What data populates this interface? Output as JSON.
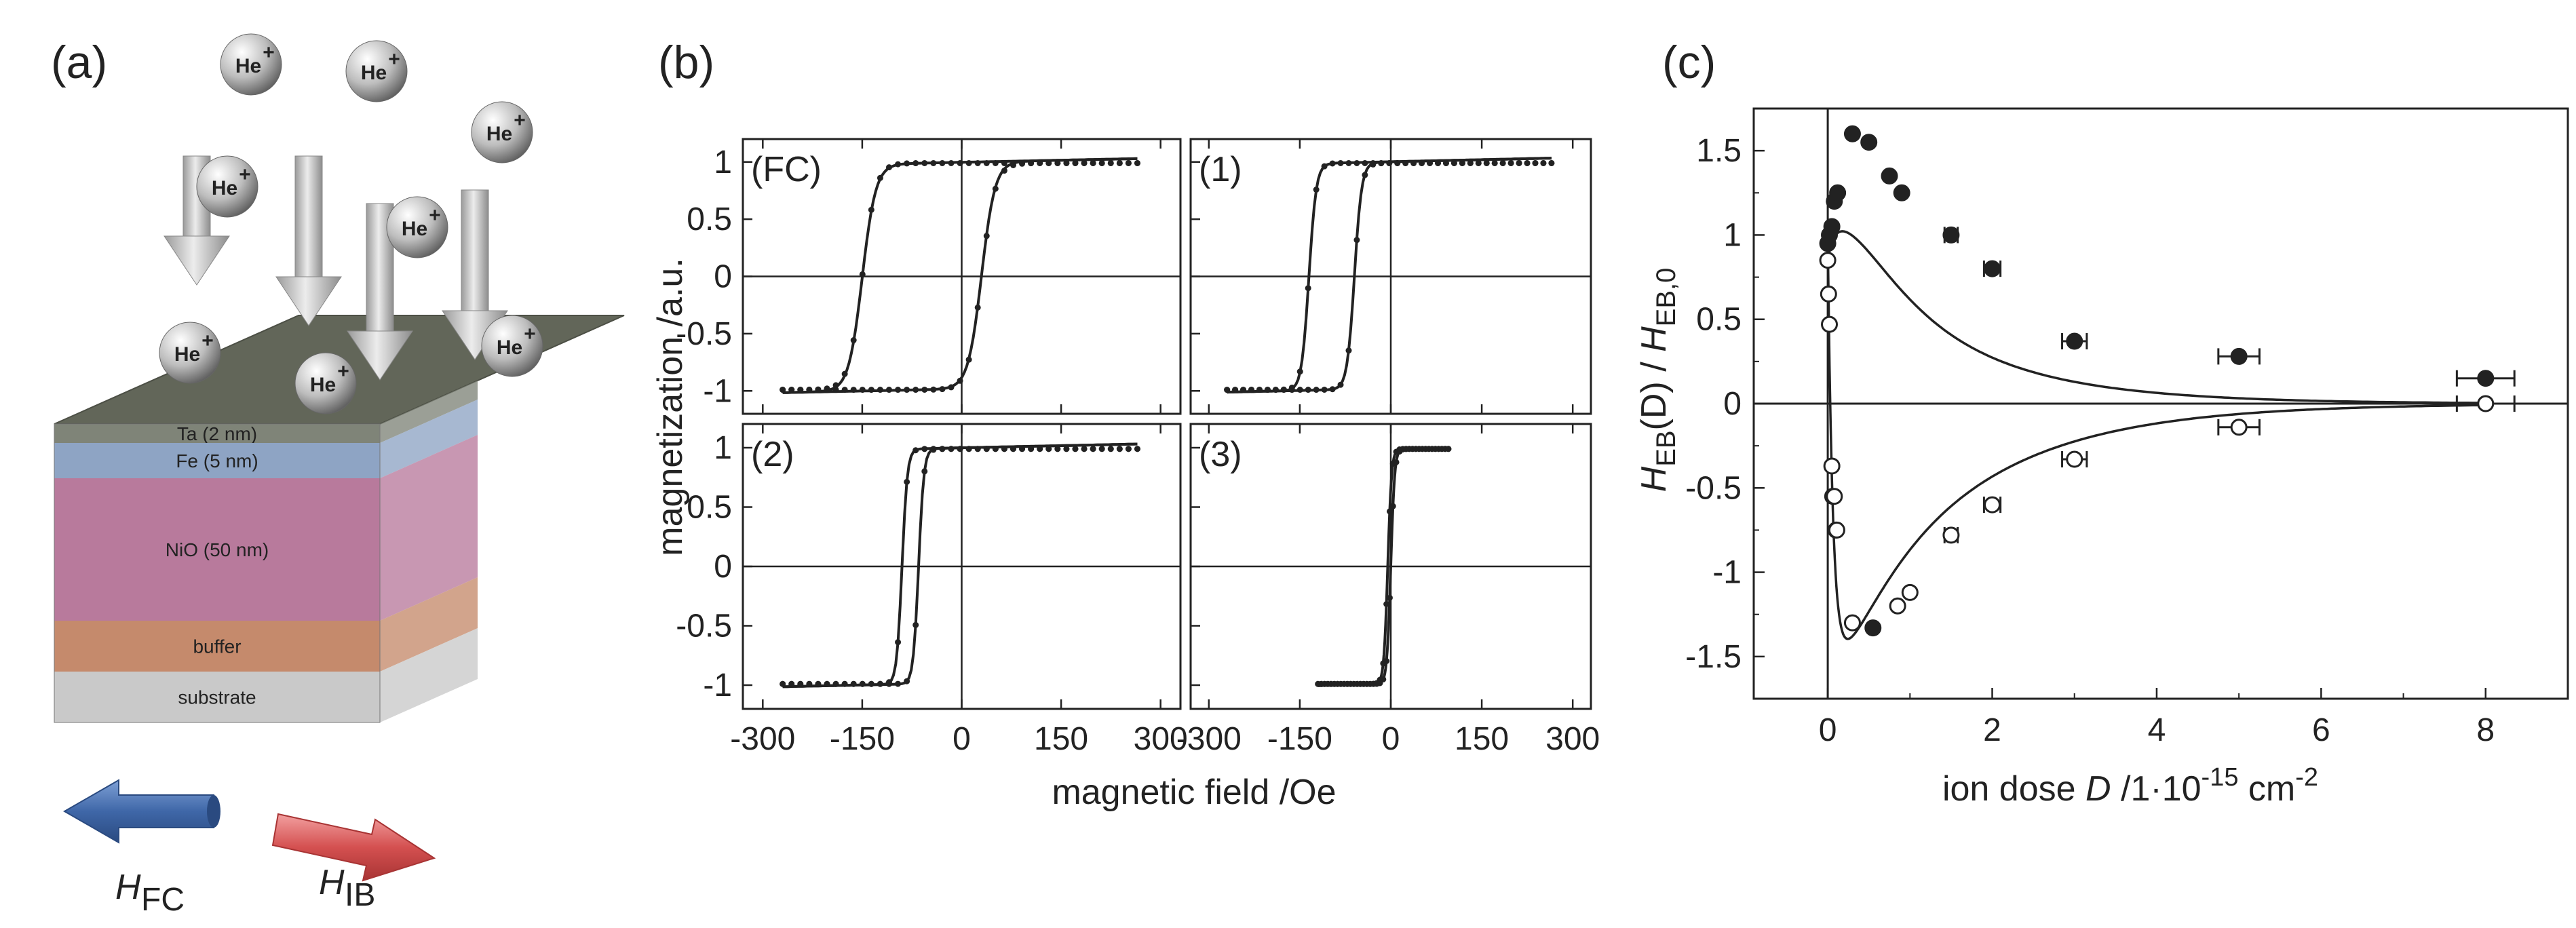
{
  "panel_a": {
    "label": "(a)",
    "ion_label": "He",
    "ion_charge": "+",
    "layers": [
      {
        "label": "Ta (2 nm)",
        "color": "#7f8478",
        "thick": 28
      },
      {
        "label": "Fe (5 nm)",
        "color": "#8ea4c4",
        "thick": 52
      },
      {
        "label": "NiO (50 nm)",
        "color": "#b87a9c",
        "thick": 210
      },
      {
        "label": "buffer",
        "color": "#c58a6c",
        "thick": 75
      },
      {
        "label": "substrate",
        "color": "#c9c9c9",
        "thick": 75
      }
    ],
    "top_color": "#626659",
    "arrow_fc": {
      "symbol": "H",
      "subscript": "FC",
      "color": "#4a74b3"
    },
    "arrow_ib": {
      "symbol": "H",
      "subscript": "IB",
      "color": "#d45a5a"
    }
  },
  "panel_b": {
    "label": "(b)",
    "ylabel": "magnetization /a.u.",
    "xlabel": "magnetic field /Oe",
    "xticks": [
      "-300",
      "-150",
      "0",
      "150",
      "300"
    ],
    "yticks": [
      "1",
      "0.5",
      "0",
      "-0.5",
      "-1"
    ]
  },
  "panel_c": {
    "label": "(c)",
    "ylabel_main": "H",
    "ylabel_sub1": "EB",
    "ylabel_mid": "(D) / ",
    "ylabel_main2": "H",
    "ylabel_sub2": "EB,0",
    "xlabel_prefix": "ion dose ",
    "xlabel_var": "D",
    "xlabel_unit": " /1·10",
    "xlabel_exp1": "-15",
    "xlabel_unit2": " cm",
    "xlabel_exp2": "-2",
    "xticks": [
      "0",
      "2",
      "4",
      "6",
      "8"
    ],
    "yticks": [
      "1.5",
      "1",
      "0.5",
      "0",
      "-0.5",
      "-1",
      "-1.5"
    ]
  },
  "chart_data": [
    {
      "type": "line",
      "panel": "b",
      "tag": "(FC)",
      "xlim": [
        -330,
        330
      ],
      "ylim": [
        -1.2,
        1.2
      ],
      "hc_left": -150,
      "hc_right": 30,
      "saturation": 1.0,
      "x_range": [
        -270,
        265
      ]
    },
    {
      "type": "line",
      "panel": "b",
      "tag": "(1)",
      "xlim": [
        -330,
        330
      ],
      "ylim": [
        -1.2,
        1.2
      ],
      "hc_left": -135,
      "hc_right": -60,
      "saturation": 1.0,
      "x_range": [
        -270,
        265
      ]
    },
    {
      "type": "line",
      "panel": "b",
      "tag": "(2)",
      "xlim": [
        -330,
        330
      ],
      "ylim": [
        -1.2,
        1.2
      ],
      "hc_left": -90,
      "hc_right": -65,
      "saturation": 1.0,
      "x_range": [
        -270,
        265
      ]
    },
    {
      "type": "line",
      "panel": "b",
      "tag": "(3)",
      "xlim": [
        -330,
        330
      ],
      "ylim": [
        -1.2,
        1.2
      ],
      "hc_left": -5,
      "hc_right": 0,
      "saturation": 1.0,
      "x_range": [
        -120,
        95
      ]
    },
    {
      "type": "scatter",
      "panel": "c",
      "xlim": [
        -0.9,
        9.0
      ],
      "ylim": [
        -1.75,
        1.75
      ],
      "filled_points": [
        {
          "x": 0.0,
          "y": 0.95
        },
        {
          "x": 0.02,
          "y": 1.0
        },
        {
          "x": 0.05,
          "y": 1.05
        },
        {
          "x": 0.08,
          "y": 1.2
        },
        {
          "x": 0.12,
          "y": 1.25
        },
        {
          "x": 0.3,
          "y": 1.6
        },
        {
          "x": 0.5,
          "y": 1.55
        },
        {
          "x": 0.75,
          "y": 1.35
        },
        {
          "x": 0.9,
          "y": 1.25
        },
        {
          "x": 1.5,
          "y": 1.0,
          "xerr": 0.08
        },
        {
          "x": 2.0,
          "y": 0.8,
          "xerr": 0.1
        },
        {
          "x": 3.0,
          "y": 0.37,
          "xerr": 0.15
        },
        {
          "x": 5.0,
          "y": 0.28,
          "xerr": 0.25
        },
        {
          "x": 8.0,
          "y": 0.15,
          "xerr": 0.35
        },
        {
          "x": 0.06,
          "y": -0.55
        },
        {
          "x": 0.1,
          "y": -0.75
        },
        {
          "x": 0.55,
          "y": -1.33
        }
      ],
      "open_points": [
        {
          "x": 0.0,
          "y": 0.85
        },
        {
          "x": 0.01,
          "y": 0.65
        },
        {
          "x": 0.02,
          "y": 0.47
        },
        {
          "x": 0.05,
          "y": -0.37
        },
        {
          "x": 0.08,
          "y": -0.55
        },
        {
          "x": 0.11,
          "y": -0.75
        },
        {
          "x": 0.3,
          "y": -1.3
        },
        {
          "x": 0.85,
          "y": -1.2
        },
        {
          "x": 1.0,
          "y": -1.12
        },
        {
          "x": 1.5,
          "y": -0.78,
          "xerr": 0.08
        },
        {
          "x": 2.0,
          "y": -0.6,
          "xerr": 0.1
        },
        {
          "x": 3.0,
          "y": -0.33,
          "xerr": 0.15
        },
        {
          "x": 5.0,
          "y": -0.14,
          "xerr": 0.25
        },
        {
          "x": 8.0,
          "y": 0.0,
          "xerr": 0.35
        }
      ],
      "fit_upper": {
        "amplitude": 1.0,
        "peak": 1.5,
        "peak_x": 0.35
      },
      "fit_lower": {
        "amplitude": -1.0,
        "peak": -1.35,
        "peak_x": 0.3
      }
    }
  ]
}
